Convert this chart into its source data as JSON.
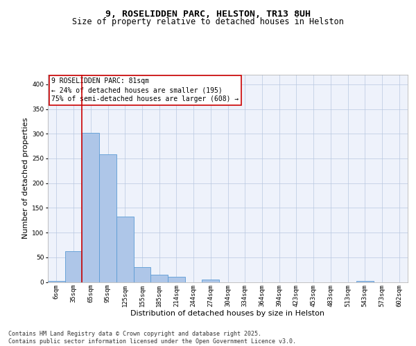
{
  "title_line1": "9, ROSELIDDEN PARC, HELSTON, TR13 8UH",
  "title_line2": "Size of property relative to detached houses in Helston",
  "xlabel": "Distribution of detached houses by size in Helston",
  "ylabel": "Number of detached properties",
  "categories": [
    "6sqm",
    "35sqm",
    "65sqm",
    "95sqm",
    "125sqm",
    "155sqm",
    "185sqm",
    "214sqm",
    "244sqm",
    "274sqm",
    "304sqm",
    "334sqm",
    "364sqm",
    "394sqm",
    "423sqm",
    "453sqm",
    "483sqm",
    "513sqm",
    "543sqm",
    "573sqm",
    "602sqm"
  ],
  "values": [
    2,
    62,
    302,
    258,
    133,
    30,
    15,
    10,
    0,
    5,
    0,
    0,
    0,
    0,
    0,
    0,
    0,
    0,
    2,
    0,
    0
  ],
  "bar_color": "#aec6e8",
  "bar_edge_color": "#5b9bd5",
  "vline_x": 2.0,
  "vline_color": "#cc0000",
  "annotation_text": "9 ROSELIDDEN PARC: 81sqm\n← 24% of detached houses are smaller (195)\n75% of semi-detached houses are larger (608) →",
  "annotation_box_color": "#cc0000",
  "ylim": [
    0,
    420
  ],
  "yticks": [
    0,
    50,
    100,
    150,
    200,
    250,
    300,
    350,
    400
  ],
  "background_color": "#eef2fb",
  "footer_text": "Contains HM Land Registry data © Crown copyright and database right 2025.\nContains public sector information licensed under the Open Government Licence v3.0.",
  "title_fontsize": 9.5,
  "subtitle_fontsize": 8.5,
  "axis_label_fontsize": 8,
  "tick_fontsize": 6.5,
  "annotation_fontsize": 7,
  "footer_fontsize": 6
}
